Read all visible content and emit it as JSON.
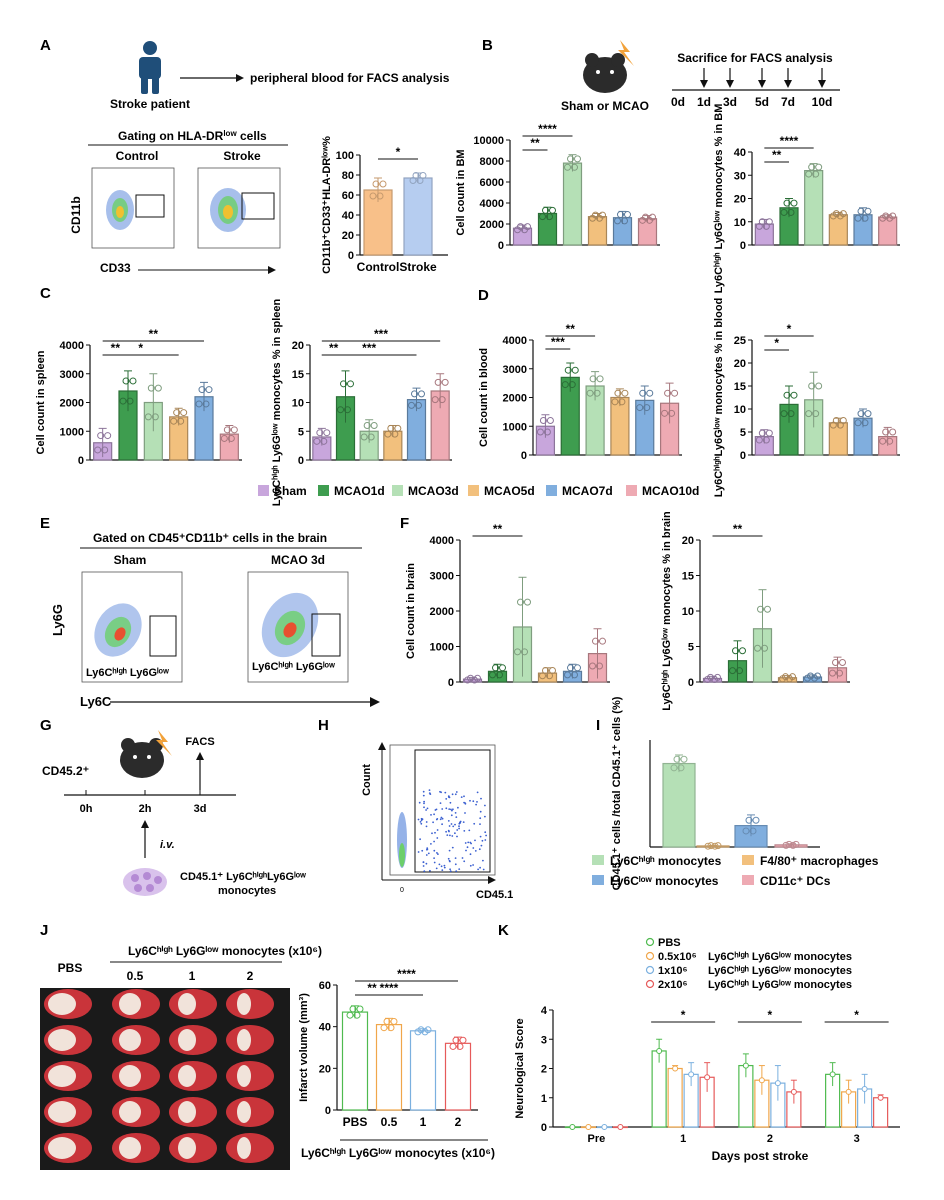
{
  "panels": [
    "A",
    "B",
    "C",
    "D",
    "E",
    "F",
    "G",
    "H",
    "I",
    "J",
    "K"
  ],
  "colors": {
    "sham": "#c8a6dc",
    "mcao1d": "#3e9d4f",
    "mcao3d": "#b5e0b6",
    "mcao5d": "#f2c07d",
    "mcao7d": "#80aede",
    "mcao10d": "#eeaab3",
    "control": "#f8c089",
    "stroke": "#b6cdf0",
    "pbs": "#4fba4f",
    "d05": "#f0a64a",
    "d1": "#7bb0df",
    "d2": "#e65a5a"
  },
  "a": {
    "patient": "Stroke patient",
    "arrow_text": "peripheral blood for FACS analysis",
    "gating_title": "Gating on HLA-DR",
    "gating_sup": "low",
    "gating_suffix": " cells",
    "control": "Control",
    "stroke": "Stroke",
    "ylab": "CD11b",
    "xlab": "CD33"
  },
  "b": {
    "group_label": "Sham or MCAO",
    "timeline_title": "Sacrifice for FACS analysis",
    "days": [
      "0d",
      "1d",
      "3d",
      "5d",
      "7d",
      "10d"
    ]
  },
  "legend": [
    "Sham",
    "MCAO1d",
    "MCAO3d",
    "MCAO5d",
    "MCAO7d",
    "MCAO10d"
  ],
  "e": {
    "title": "Gated on CD45⁺CD11b⁺ cells in the brain",
    "sham": "Sham",
    "mcao": "MCAO 3d",
    "ylab": "Ly6G",
    "xlab": "Ly6C",
    "gate_label": "Ly6Cʰⁱᵍʰ Ly6Gˡᵒʷ"
  },
  "g": {
    "cd452": "CD45.2⁺",
    "facs": "FACS",
    "ticks": [
      "0h",
      "2h",
      "3d"
    ],
    "iv": "i.v.",
    "cells1": "CD45.1⁺ Ly6CʰⁱᵍʰLy6Gˡᵒʷ",
    "cells2": "monocytes"
  },
  "h": {
    "ylab": "Count",
    "xlab": "CD45.1",
    "tick": "0"
  },
  "i_legend": [
    "Ly6Cʰⁱᵍʰ monocytes",
    "F4/80⁺ macrophages",
    "Ly6Cˡᵒʷ monocytes",
    "CD11c⁺ DCs"
  ],
  "j": {
    "header": "Ly6Cʰⁱᵍʰ Ly6Gˡᵒʷ monocytes (x10⁶)",
    "cols": [
      "PBS",
      "0.5",
      "1",
      "2"
    ],
    "xlab": "Ly6Cʰⁱᵍʰ Ly6Gˡᵒʷ monocytes (x10⁶)"
  },
  "k_legend": [
    {
      "dose": "PBS",
      "text": ""
    },
    {
      "dose": "0.5x10⁶",
      "text": "Ly6Cʰⁱᵍʰ Ly6Gˡᵒʷ monocytes"
    },
    {
      "dose": "1x10⁶",
      "text": "Ly6Cʰⁱᵍʰ Ly6Gˡᵒʷ monocytes"
    },
    {
      "dose": "2x10⁶",
      "text": "Ly6Cʰⁱᵍʰ Ly6Gˡᵒʷ monocytes"
    }
  ],
  "chart_data": [
    {
      "id": "A",
      "type": "bar",
      "ylabel": "CD11b⁺CD33⁺HLA-DRˡᵒʷ%",
      "categories": [
        "Control",
        "Stroke"
      ],
      "values": [
        65,
        77
      ],
      "errors": [
        12,
        5
      ],
      "ylim": [
        0,
        100
      ],
      "yticks": [
        0,
        20,
        40,
        60,
        80,
        100
      ],
      "sig": [
        {
          "a": 0,
          "b": 1,
          "t": "*"
        }
      ]
    },
    {
      "id": "B1",
      "type": "bar",
      "ylabel": "Cell count in BM",
      "categories": [
        "Sham",
        "MCAO1d",
        "MCAO3d",
        "MCAO5d",
        "MCAO7d",
        "MCAO10d"
      ],
      "values": [
        1600,
        3000,
        7800,
        2700,
        2600,
        2500
      ],
      "errors": [
        300,
        600,
        800,
        300,
        600,
        300
      ],
      "ylim": [
        0,
        10000
      ],
      "yticks": [
        0,
        2000,
        4000,
        6000,
        8000,
        10000
      ],
      "sig": [
        {
          "a": 0,
          "b": 1,
          "t": "**"
        },
        {
          "a": 0,
          "b": 2,
          "t": "****"
        }
      ]
    },
    {
      "id": "B2",
      "type": "bar",
      "ylabel": "Ly6Cʰⁱᵍʰ Ly6Gˡᵒʷ monocytes % in BM",
      "categories": [
        "Sham",
        "MCAO1d",
        "MCAO3d",
        "MCAO5d",
        "MCAO7d",
        "MCAO10d"
      ],
      "values": [
        9,
        16,
        32,
        13,
        13,
        12
      ],
      "errors": [
        2,
        4,
        3,
        1,
        3,
        1
      ],
      "ylim": [
        0,
        40
      ],
      "yticks": [
        0,
        10,
        20,
        30,
        40
      ],
      "sig": [
        {
          "a": 0,
          "b": 1,
          "t": "**"
        },
        {
          "a": 0,
          "b": 2,
          "t": "****"
        }
      ]
    },
    {
      "id": "C1",
      "type": "bar",
      "ylabel": "Cell count in spleen",
      "categories": [
        "Sham",
        "MCAO1d",
        "MCAO3d",
        "MCAO5d",
        "MCAO7d",
        "MCAO10d"
      ],
      "values": [
        600,
        2400,
        2000,
        1500,
        2200,
        900
      ],
      "errors": [
        500,
        700,
        1000,
        300,
        500,
        300
      ],
      "ylim": [
        0,
        4000
      ],
      "yticks": [
        0,
        1000,
        2000,
        3000,
        4000
      ],
      "sig": [
        {
          "a": 0,
          "b": 1,
          "t": "**"
        },
        {
          "a": 0,
          "b": 3,
          "t": "*"
        },
        {
          "a": 0,
          "b": 4,
          "t": "**"
        }
      ]
    },
    {
      "id": "C2",
      "type": "bar",
      "ylabel": "Ly6Cʰⁱᵍʰ Ly6Gˡᵒʷ monocytes % in spleen",
      "categories": [
        "Sham",
        "MCAO1d",
        "MCAO3d",
        "MCAO5d",
        "MCAO7d",
        "MCAO10d"
      ],
      "values": [
        4,
        11,
        5,
        5,
        10.5,
        12
      ],
      "errors": [
        1.5,
        4.5,
        2,
        1,
        2,
        3
      ],
      "ylim": [
        0,
        20
      ],
      "yticks": [
        0,
        5,
        10,
        15,
        20
      ],
      "sig": [
        {
          "a": 0,
          "b": 1,
          "t": "**"
        },
        {
          "a": 0,
          "b": 4,
          "t": "***"
        },
        {
          "a": 0,
          "b": 5,
          "t": "***"
        }
      ]
    },
    {
      "id": "D1",
      "type": "bar",
      "ylabel": "Cell count in blood",
      "categories": [
        "Sham",
        "MCAO1d",
        "MCAO3d",
        "MCAO5d",
        "MCAO7d",
        "MCAO10d"
      ],
      "values": [
        1000,
        2700,
        2400,
        2000,
        1900,
        1800
      ],
      "errors": [
        400,
        500,
        500,
        300,
        500,
        700
      ],
      "ylim": [
        0,
        4000
      ],
      "yticks": [
        0,
        1000,
        2000,
        3000,
        4000
      ],
      "sig": [
        {
          "a": 0,
          "b": 1,
          "t": "***"
        },
        {
          "a": 0,
          "b": 2,
          "t": "**"
        }
      ]
    },
    {
      "id": "D2",
      "type": "bar",
      "ylabel": "Ly6CʰⁱᵍʰLy6Gˡᵒʷ monocytes % in blood",
      "categories": [
        "Sham",
        "MCAO1d",
        "MCAO3d",
        "MCAO5d",
        "MCAO7d",
        "MCAO10d"
      ],
      "values": [
        4,
        11,
        12,
        7,
        8,
        4
      ],
      "errors": [
        1.5,
        4,
        6,
        1,
        2,
        2
      ],
      "ylim": [
        0,
        25
      ],
      "yticks": [
        0,
        5,
        10,
        15,
        20,
        25
      ],
      "sig": [
        {
          "a": 0,
          "b": 1,
          "t": "*"
        },
        {
          "a": 0,
          "b": 2,
          "t": "*"
        }
      ]
    },
    {
      "id": "F1",
      "type": "bar",
      "ylabel": "Cell count in brain",
      "categories": [
        "Sham",
        "MCAO1d",
        "MCAO3d",
        "MCAO5d",
        "MCAO7d",
        "MCAO10d"
      ],
      "values": [
        80,
        300,
        1550,
        250,
        300,
        800
      ],
      "errors": [
        50,
        200,
        1400,
        150,
        200,
        700
      ],
      "ylim": [
        0,
        4000
      ],
      "yticks": [
        0,
        1000,
        2000,
        3000,
        4000
      ],
      "sig": [
        {
          "a": 0,
          "b": 2,
          "t": "**"
        }
      ]
    },
    {
      "id": "F2",
      "type": "bar",
      "ylabel": "Ly6Cʰⁱᵍʰ Ly6Gˡᵒʷ monocytes % in brain",
      "categories": [
        "Sham",
        "MCAO1d",
        "MCAO3d",
        "MCAO5d",
        "MCAO7d",
        "MCAO10d"
      ],
      "values": [
        0.5,
        3,
        7.5,
        0.6,
        0.7,
        2
      ],
      "errors": [
        0.3,
        2.8,
        5.5,
        0.3,
        0.3,
        1.5
      ],
      "ylim": [
        0,
        20
      ],
      "yticks": [
        0,
        5,
        10,
        15,
        20
      ],
      "sig": [
        {
          "a": 0,
          "b": 2,
          "t": "**"
        }
      ]
    },
    {
      "id": "I",
      "type": "bar",
      "ylabel": "CD45.1⁺ cells /total CD45.1⁺ cells (%)",
      "categories": [
        "Ly6Cʰⁱᵍʰ monocytes",
        "F4/80⁺ macrophages",
        "Ly6Cˡᵒʷ monocytes",
        "CD11c⁺ DCs"
      ],
      "values": [
        78,
        1,
        20,
        2
      ],
      "errors": [
        8,
        0.5,
        10,
        1
      ],
      "ylim": [
        0,
        100
      ],
      "yticks": [],
      "sig": []
    },
    {
      "id": "J",
      "type": "bar",
      "ylabel": "Infarct volume (mm³)",
      "categories": [
        "PBS",
        "0.5",
        "1",
        "2"
      ],
      "values": [
        47,
        41,
        38,
        32
      ],
      "errors": [
        3,
        3,
        1,
        3
      ],
      "ylim": [
        0,
        60
      ],
      "yticks": [
        0,
        20,
        40,
        60
      ],
      "sig": [
        {
          "a": 0,
          "b": 1,
          "t": "**"
        },
        {
          "a": 0,
          "b": 2,
          "t": "****"
        },
        {
          "a": 0,
          "b": 3,
          "t": "****"
        }
      ]
    },
    {
      "id": "K",
      "type": "bar",
      "ylabel": "Neurological Score",
      "xlabel": "Days post stroke",
      "categories": [
        "Pre",
        "1",
        "2",
        "3"
      ],
      "series": [
        {
          "name": "PBS",
          "values": [
            0,
            2.6,
            2.1,
            1.8
          ]
        },
        {
          "name": "0.5x10⁶",
          "values": [
            0,
            2.0,
            1.6,
            1.2
          ]
        },
        {
          "name": "1x10⁶",
          "values": [
            0,
            1.8,
            1.5,
            1.3
          ]
        },
        {
          "name": "2x10⁶",
          "values": [
            0,
            1.7,
            1.2,
            1.0
          ]
        }
      ],
      "errors": [
        [
          0,
          0.4,
          0.4,
          0.4
        ],
        [
          0,
          0.1,
          0.5,
          0.4
        ],
        [
          0,
          0.4,
          0.6,
          0.5
        ],
        [
          0,
          0.5,
          0.4,
          0.1
        ]
      ],
      "ylim": [
        0,
        4
      ],
      "yticks": [
        0,
        1,
        2,
        3,
        4
      ],
      "sig": [
        {
          "g": 1,
          "t": "*"
        },
        {
          "g": 2,
          "t": "*"
        },
        {
          "g": 3,
          "t": "*"
        }
      ]
    }
  ]
}
